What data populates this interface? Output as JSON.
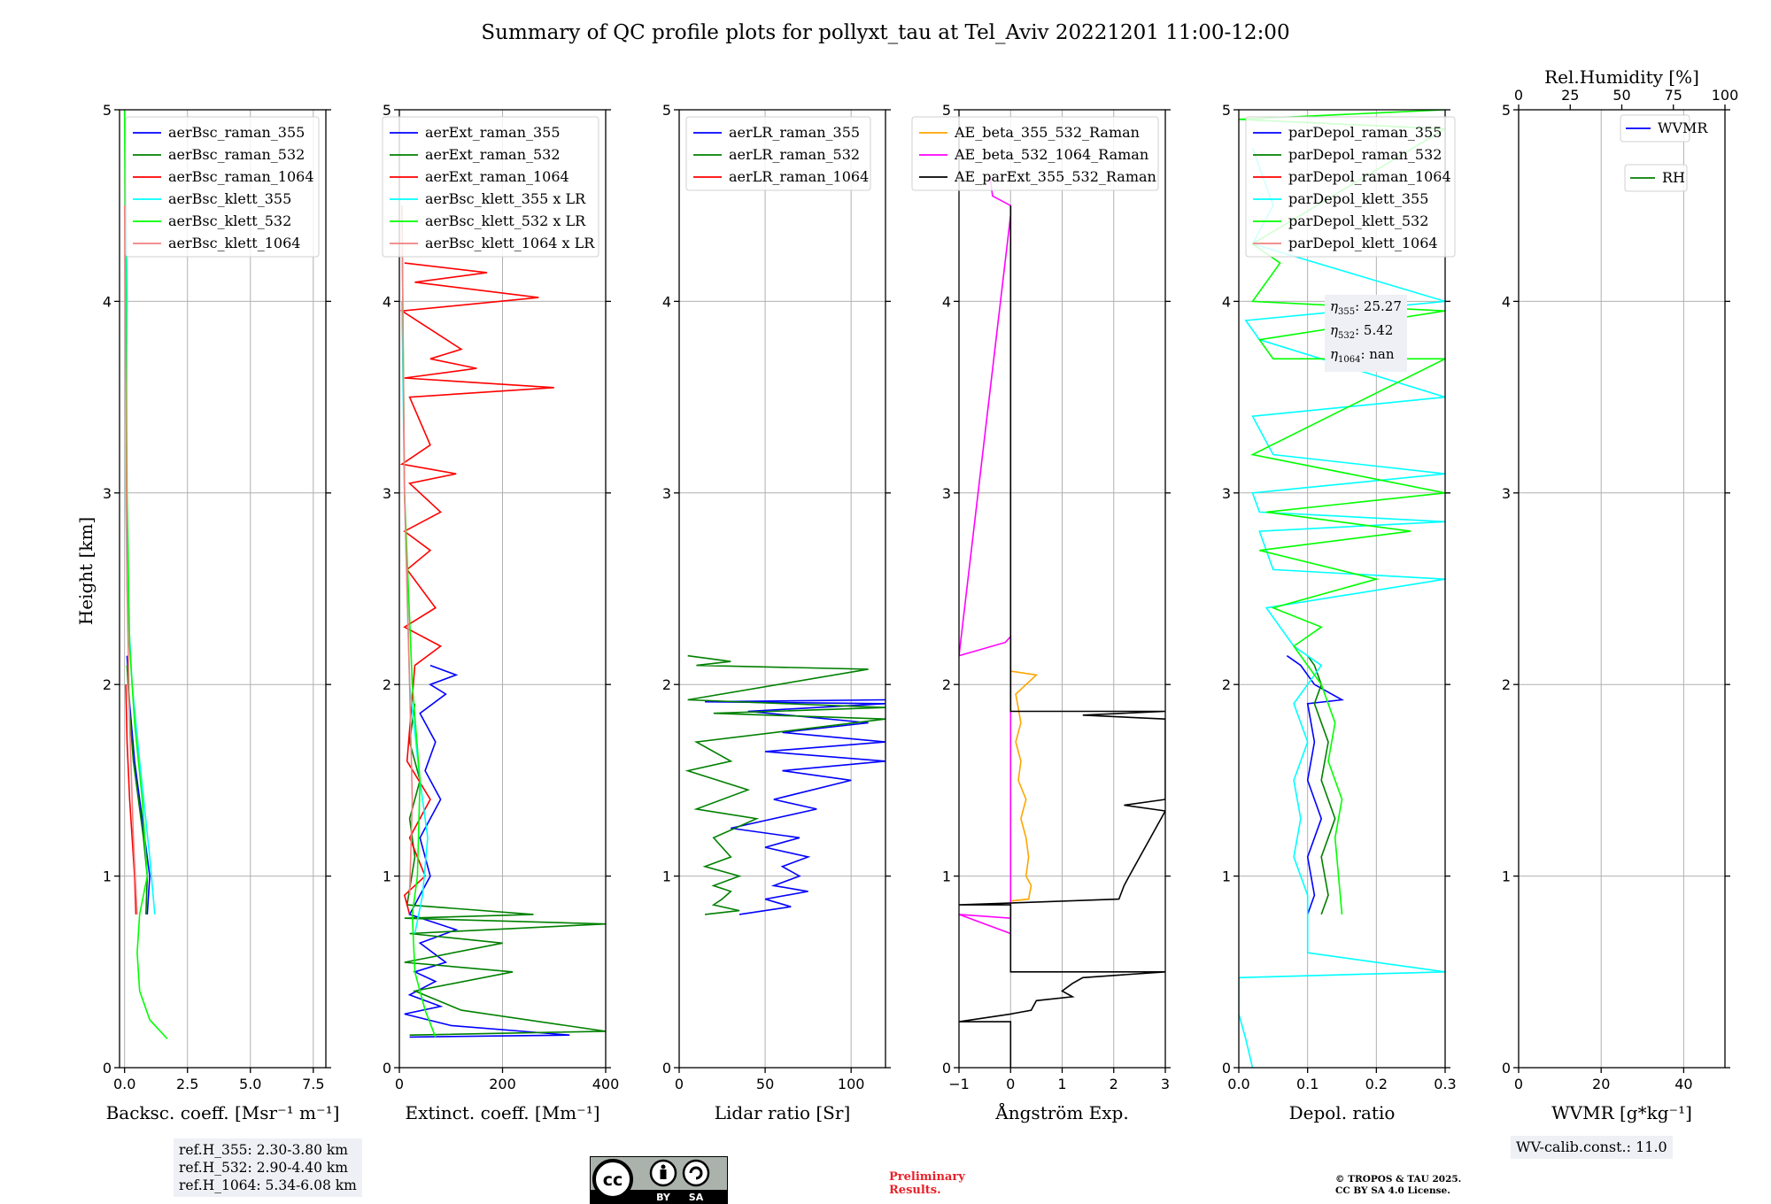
{
  "title": "Summary of QC profile plots for pollyxt_tau at Tel_Aviv 20221201 11:00-12:00",
  "y_axis_label": "Height [km]",
  "ref_heights": [
    "ref.H_355: 2.30-3.80 km",
    "ref.H_532: 2.90-4.40 km",
    "ref.H_1064: 5.34-6.08 km"
  ],
  "eta_labels": [
    {
      "sym": "η",
      "sub": "355",
      "text": ": 25.27"
    },
    {
      "sym": "η",
      "sub": "532",
      "text": ": 5.42"
    },
    {
      "sym": "η",
      "sub": "1064",
      "text": ": nan"
    }
  ],
  "wv_calib": "WV-calib.const.: 11.0",
  "preliminary": [
    "Preliminary",
    "Results."
  ],
  "copyright": [
    "© TROPOS & TAU 2025.",
    "CC BY SA 4.0 License."
  ],
  "license_badge": [
    "BY",
    "SA"
  ],
  "colors": {
    "blue": "#0000ff",
    "green": "#008000",
    "red": "#ff0000",
    "cyan": "#00ffff",
    "lime": "#00ff00",
    "salmon": "#f08080",
    "orange": "#ffa500",
    "magenta": "#ff00ff",
    "black": "#000000"
  },
  "chart_data": [
    {
      "id": "backscatter",
      "type": "line",
      "xlabel": "Backsc. coeff. [Msr⁻¹ m⁻¹]",
      "ylabel": "Height [km]",
      "xlim": [
        -0.2,
        8
      ],
      "ylim": [
        0,
        5
      ],
      "xticks": [
        0,
        2.5,
        5,
        7.5
      ],
      "xtick_labels": [
        "0.0",
        "2.5",
        "5.0",
        "7.5"
      ],
      "yticks": [
        0,
        1,
        2,
        3,
        4,
        5
      ],
      "grid": true,
      "legend_position": "top-right",
      "series": [
        {
          "name": "aerBsc_raman_355",
          "color": "#0000ff",
          "x": [
            0.1,
            0.2,
            0.4,
            0.6,
            0.8,
            1.0,
            0.9
          ],
          "y": [
            2.15,
            1.9,
            1.6,
            1.4,
            1.2,
            1.0,
            0.8
          ]
        },
        {
          "name": "aerBsc_raman_532",
          "color": "#008000",
          "x": [
            0.1,
            0.2,
            0.35,
            0.55,
            0.75,
            0.9,
            0.85
          ],
          "y": [
            2.1,
            1.85,
            1.6,
            1.4,
            1.2,
            1.0,
            0.8
          ]
        },
        {
          "name": "aerBsc_raman_1064",
          "color": "#ff0000",
          "x": [
            0.05,
            0.1,
            0.2,
            0.3,
            0.4,
            0.45
          ],
          "y": [
            2.0,
            1.7,
            1.4,
            1.2,
            1.0,
            0.8
          ]
        },
        {
          "name": "aerBsc_klett_355",
          "color": "#00ffff",
          "x": [
            0.0,
            0.05,
            0.1,
            0.05,
            0.1,
            0.3,
            0.6,
            1.0,
            1.2
          ],
          "y": [
            5.0,
            4.5,
            4.0,
            3.0,
            2.5,
            2.0,
            1.6,
            1.1,
            0.8
          ]
        },
        {
          "name": "aerBsc_klett_532",
          "color": "#00ff00",
          "x": [
            0.0,
            0.05,
            0.1,
            0.2,
            0.4,
            0.7,
            0.9,
            0.6,
            0.5,
            0.6,
            1.0,
            1.7
          ],
          "y": [
            5.0,
            4.0,
            3.0,
            2.2,
            1.8,
            1.4,
            1.0,
            0.8,
            0.6,
            0.4,
            0.25,
            0.15
          ]
        },
        {
          "name": "aerBsc_klett_1064",
          "color": "#f08080",
          "x": [
            0.0,
            0.05,
            0.1,
            0.2,
            0.35,
            0.5
          ],
          "y": [
            4.5,
            3.5,
            2.5,
            1.8,
            1.2,
            0.8
          ]
        }
      ]
    },
    {
      "id": "extinction",
      "type": "line",
      "xlabel": "Extinct. coeff. [Mm⁻¹]",
      "ylabel": "",
      "xlim": [
        0,
        400
      ],
      "ylim": [
        0,
        5
      ],
      "xticks": [
        0,
        200,
        400
      ],
      "xtick_labels": [
        "0",
        "200",
        "400"
      ],
      "yticks": [
        0,
        1,
        2,
        3,
        4,
        5
      ],
      "grid": true,
      "legend_position": "top-right",
      "series": [
        {
          "name": "aerExt_raman_355",
          "color": "#0000ff",
          "x": [
            60,
            110,
            60,
            90,
            40,
            70,
            50,
            80,
            40,
            60,
            20,
            110,
            40,
            90,
            30,
            70,
            20,
            80,
            10,
            100,
            330,
            20
          ],
          "y": [
            2.1,
            2.05,
            2.0,
            1.95,
            1.85,
            1.7,
            1.55,
            1.4,
            1.2,
            1.0,
            0.8,
            0.72,
            0.65,
            0.55,
            0.5,
            0.45,
            0.38,
            0.32,
            0.28,
            0.22,
            0.17,
            0.16
          ]
        },
        {
          "name": "aerExt_raman_532",
          "color": "#008000",
          "x": [
            30,
            20,
            40,
            20,
            30,
            15,
            260,
            10,
            400,
            20,
            200,
            10,
            220,
            30,
            120,
            400,
            20
          ],
          "y": [
            1.9,
            1.7,
            1.5,
            1.3,
            1.1,
            0.85,
            0.8,
            0.78,
            0.75,
            0.7,
            0.65,
            0.55,
            0.5,
            0.4,
            0.3,
            0.19,
            0.17
          ]
        },
        {
          "name": "aerExt_raman_1064",
          "color": "#ff0000",
          "x": [
            10,
            170,
            30,
            270,
            5,
            120,
            60,
            150,
            10,
            300,
            20,
            60,
            5,
            110,
            20,
            80,
            10,
            60,
            15,
            70,
            10,
            80,
            30,
            15,
            60,
            20,
            50,
            10,
            20
          ],
          "y": [
            4.2,
            4.15,
            4.1,
            4.02,
            3.95,
            3.75,
            3.7,
            3.65,
            3.6,
            3.55,
            3.5,
            3.25,
            3.15,
            3.1,
            3.05,
            2.9,
            2.8,
            2.7,
            2.6,
            2.4,
            2.3,
            2.2,
            2.1,
            1.6,
            1.4,
            1.2,
            1.0,
            0.9,
            0.8
          ]
        },
        {
          "name": "aerBsc_klett_355 x LR",
          "color": "#00ffff",
          "x": [
            5,
            10,
            20,
            40,
            55,
            45,
            30
          ],
          "y": [
            4.0,
            3.0,
            2.0,
            1.5,
            1.2,
            0.9,
            0.7
          ]
        },
        {
          "name": "aerBsc_klett_532 x LR",
          "color": "#00ff00",
          "x": [
            5,
            10,
            25,
            40,
            35,
            25,
            30,
            50,
            70
          ],
          "y": [
            4.5,
            3.0,
            2.0,
            1.5,
            1.0,
            0.8,
            0.5,
            0.3,
            0.16
          ]
        },
        {
          "name": "aerBsc_klett_1064 x LR",
          "color": "#f08080",
          "x": [
            5,
            10,
            20,
            25,
            20
          ],
          "y": [
            4.5,
            3.0,
            2.0,
            1.4,
            0.9
          ]
        }
      ]
    },
    {
      "id": "lidar_ratio",
      "type": "line",
      "xlabel": "Lidar ratio [Sr]",
      "ylabel": "",
      "xlim": [
        0,
        120
      ],
      "ylim": [
        0,
        5
      ],
      "xticks": [
        0,
        50,
        100
      ],
      "xtick_labels": [
        "0",
        "50",
        "100"
      ],
      "yticks": [
        0,
        1,
        2,
        3,
        4,
        5
      ],
      "grid": true,
      "legend_position": "top-left",
      "series": [
        {
          "name": "aerLR_raman_355",
          "color": "#0000ff",
          "x": [
            120,
            15,
            120,
            40,
            110,
            60,
            120,
            50,
            120,
            60,
            100,
            55,
            80,
            30,
            70,
            50,
            75,
            60,
            70,
            55,
            75,
            50,
            65,
            35
          ],
          "y": [
            1.92,
            1.91,
            1.9,
            1.86,
            1.8,
            1.75,
            1.7,
            1.65,
            1.6,
            1.55,
            1.5,
            1.4,
            1.35,
            1.25,
            1.2,
            1.15,
            1.1,
            1.05,
            1.0,
            0.95,
            0.92,
            0.88,
            0.84,
            0.8
          ]
        },
        {
          "name": "aerLR_raman_532",
          "color": "#008000",
          "x": [
            5,
            30,
            10,
            110,
            5,
            120,
            20,
            120,
            10,
            30,
            5,
            40,
            10,
            45,
            20,
            30,
            15,
            35,
            20,
            30,
            25,
            20,
            35,
            15
          ],
          "y": [
            2.15,
            2.12,
            2.1,
            2.08,
            1.92,
            1.88,
            1.85,
            1.82,
            1.7,
            1.6,
            1.55,
            1.45,
            1.35,
            1.3,
            1.2,
            1.1,
            1.05,
            1.0,
            0.95,
            0.92,
            0.88,
            0.85,
            0.82,
            0.8
          ]
        },
        {
          "name": "aerLR_raman_1064",
          "color": "#ff0000",
          "x": [],
          "y": []
        }
      ]
    },
    {
      "id": "angstrom",
      "type": "line",
      "xlabel": "Ångström Exp.",
      "ylabel": "",
      "xlim": [
        -1,
        3
      ],
      "ylim": [
        0,
        5
      ],
      "xticks": [
        -1,
        0,
        1,
        2,
        3
      ],
      "xtick_labels": [
        "−1",
        "0",
        "1",
        "2",
        "3"
      ],
      "yticks": [
        0,
        1,
        2,
        3,
        4,
        5
      ],
      "grid": true,
      "legend_position": "top-right",
      "series": [
        {
          "name": "AE_beta_355_532_Raman",
          "color": "#ffa500",
          "x": [
            0.0,
            0.5,
            0.1,
            0.2,
            0.1,
            0.2,
            0.15,
            0.3,
            0.2,
            0.3,
            0.35,
            0.3,
            0.4,
            0.35,
            0.0
          ],
          "y": [
            2.07,
            2.05,
            1.95,
            1.8,
            1.7,
            1.6,
            1.5,
            1.4,
            1.3,
            1.2,
            1.1,
            1.0,
            0.95,
            0.88,
            0.87
          ]
        },
        {
          "name": "AE_beta_532_1064_Raman",
          "color": "#ff00ff",
          "x": [
            -0.4,
            -0.35,
            0.0,
            0.0,
            -1.0,
            -0.1,
            0.0,
            0.0,
            -1.0,
            0.0
          ],
          "y": [
            4.65,
            4.55,
            4.5,
            4.45,
            2.15,
            2.22,
            2.25,
            0.78,
            0.8,
            0.7
          ]
        },
        {
          "name": "AE_parExt_355_532_Raman",
          "color": "#000000",
          "x": [
            0.0,
            0.0,
            3.0,
            1.4,
            3.0,
            3.0,
            2.2,
            3.0,
            2.3,
            2.2,
            2.1,
            -1.0,
            0.0,
            0.0,
            3.0,
            1.4,
            1.2,
            1.0,
            1.2,
            0.5,
            0.4,
            0.0,
            -1.0,
            0.0,
            0.0
          ],
          "y": [
            4.5,
            1.86,
            1.86,
            1.84,
            1.82,
            1.4,
            1.37,
            1.34,
            1.0,
            0.95,
            0.88,
            0.85,
            0.85,
            0.5,
            0.5,
            0.47,
            0.44,
            0.4,
            0.37,
            0.35,
            0.3,
            0.28,
            0.24,
            0.24,
            0.0
          ]
        }
      ]
    },
    {
      "id": "depol",
      "type": "line",
      "xlabel": "Depol. ratio",
      "ylabel": "",
      "xlim": [
        0,
        0.3
      ],
      "ylim": [
        0,
        5
      ],
      "xticks": [
        0.0,
        0.1,
        0.2,
        0.3
      ],
      "xtick_labels": [
        "0.0",
        "0.1",
        "0.2",
        "0.3"
      ],
      "yticks": [
        0,
        1,
        2,
        3,
        4,
        5
      ],
      "grid": true,
      "legend_position": "top-left",
      "series": [
        {
          "name": "parDepol_raman_355",
          "color": "#0000ff",
          "x": [
            0.07,
            0.09,
            0.11,
            0.15,
            0.1,
            0.11,
            0.1,
            0.12,
            0.1,
            0.11,
            0.1
          ],
          "y": [
            2.15,
            2.1,
            2.0,
            1.92,
            1.9,
            1.7,
            1.5,
            1.3,
            1.1,
            0.9,
            0.8
          ]
        },
        {
          "name": "parDepol_raman_532",
          "color": "#008000",
          "x": [
            0.1,
            0.11,
            0.12,
            0.11,
            0.13,
            0.12,
            0.14,
            0.12,
            0.13,
            0.12
          ],
          "y": [
            2.15,
            2.1,
            2.0,
            1.9,
            1.7,
            1.5,
            1.3,
            1.1,
            0.9,
            0.8
          ]
        },
        {
          "name": "parDepol_raman_1064",
          "color": "#ff0000",
          "x": [],
          "y": []
        },
        {
          "name": "parDepol_klett_355",
          "color": "#00ffff",
          "x": [
            0.02,
            0.05,
            0.02,
            0.3,
            0.01,
            0.03,
            0.3,
            0.02,
            0.05,
            0.3,
            0.02,
            0.03,
            0.3,
            0.03,
            0.05,
            0.3,
            0.04,
            0.06,
            0.08,
            0.12,
            0.1,
            0.08,
            0.1,
            0.08,
            0.09,
            0.08,
            0.1,
            0.1,
            0.3,
            0.0,
            0.0,
            0.01,
            0.02
          ],
          "y": [
            4.8,
            4.5,
            4.3,
            4.0,
            3.9,
            3.8,
            3.5,
            3.4,
            3.2,
            3.1,
            3.0,
            2.9,
            2.85,
            2.8,
            2.6,
            2.55,
            2.4,
            2.3,
            2.2,
            2.1,
            2.0,
            1.9,
            1.7,
            1.5,
            1.3,
            1.1,
            0.9,
            0.6,
            0.5,
            0.47,
            0.28,
            0.15,
            0.0
          ]
        },
        {
          "name": "parDepol_klett_532",
          "color": "#00ff00",
          "x": [
            0.3,
            0.0,
            0.3,
            0.02,
            0.06,
            0.02,
            0.3,
            0.03,
            0.05,
            0.3,
            0.02,
            0.3,
            0.04,
            0.25,
            0.03,
            0.2,
            0.05,
            0.12,
            0.08,
            0.1,
            0.12,
            0.14,
            0.13,
            0.15,
            0.14,
            0.15
          ],
          "y": [
            5.0,
            4.95,
            4.9,
            4.3,
            4.2,
            4.0,
            3.95,
            3.8,
            3.7,
            3.7,
            3.2,
            3.0,
            2.9,
            2.8,
            2.7,
            2.55,
            2.4,
            2.3,
            2.2,
            2.1,
            2.0,
            1.8,
            1.6,
            1.4,
            1.2,
            0.8
          ]
        },
        {
          "name": "parDepol_klett_1064",
          "color": "#f08080",
          "x": [],
          "y": []
        }
      ]
    },
    {
      "id": "wvmr",
      "type": "line",
      "xlabel": "WVMR [g*kg⁻¹]",
      "ylabel": "",
      "xlim": [
        0,
        50
      ],
      "ylim": [
        0,
        5
      ],
      "xticks": [
        0,
        20,
        40
      ],
      "xtick_labels": [
        "0",
        "20",
        "40"
      ],
      "yticks": [
        0,
        1,
        2,
        3,
        4,
        5
      ],
      "grid": true,
      "legend_position": "top-right",
      "secondary_x": {
        "label": "Rel.Humidity [%]",
        "lim": [
          0,
          100
        ],
        "ticks": [
          0,
          25,
          50,
          75,
          100
        ],
        "tick_labels": [
          "0",
          "25",
          "50",
          "75",
          "100"
        ]
      },
      "series": [
        {
          "name": "WVMR",
          "color": "#0000ff",
          "x": [],
          "y": []
        },
        {
          "name": "RH",
          "color": "#008000",
          "x": [],
          "y": []
        }
      ]
    }
  ]
}
